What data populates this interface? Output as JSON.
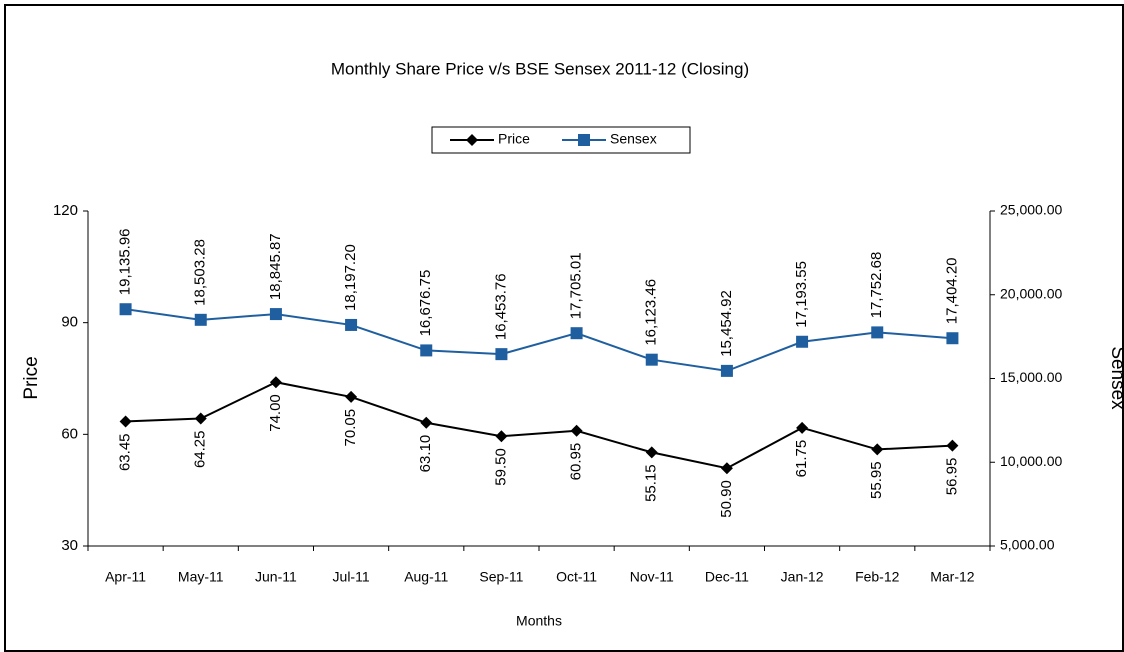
{
  "chart_data": {
    "type": "line",
    "title": "Monthly Share Price v/s BSE Sensex 2011-12 (Closing)",
    "x_label": "Months",
    "y_label": "Price",
    "y2_label": "Sensex",
    "categories": [
      "Apr-11",
      "May-11",
      "Jun-11",
      "Jul-11",
      "Aug-11",
      "Sep-11",
      "Oct-11",
      "Nov-11",
      "Dec-11",
      "Jan-12",
      "Feb-12",
      "Mar-12"
    ],
    "series": [
      {
        "name": "Price",
        "color": "#000000",
        "marker": "diamond",
        "values": [
          63.45,
          64.25,
          74.0,
          70.05,
          63.1,
          59.5,
          60.95,
          55.15,
          50.9,
          61.75,
          55.95,
          56.95
        ],
        "value_labels": [
          "63.45",
          "64.25",
          "74.00",
          "70.05",
          "63.10",
          "59.50",
          "60.95",
          "55.15",
          "50.90",
          "61.75",
          "55.95",
          "56.95"
        ]
      },
      {
        "name": "Sensex",
        "color": "#1f5fa0",
        "marker": "square",
        "axis": "y2",
        "values": [
          19135.96,
          18503.28,
          18845.87,
          18197.2,
          16676.75,
          16453.76,
          17705.01,
          16123.46,
          15454.92,
          17193.55,
          17752.68,
          17404.2
        ],
        "value_labels": [
          "19,135.96",
          "18,503.28",
          "18,845.87",
          "18,197.20",
          "16,676.75",
          "16,453.76",
          "17,705.01",
          "16,123.46",
          "15,454.92",
          "17,193.55",
          "17,752.68",
          "17,404.20"
        ]
      }
    ],
    "ylim": [
      30,
      120
    ],
    "yticks": [
      30,
      60,
      90,
      120
    ],
    "y2lim": [
      5000,
      25000
    ],
    "y2ticks": [
      {
        "value": 5000,
        "label": "5,000.00"
      },
      {
        "value": 10000,
        "label": "10,000.00"
      },
      {
        "value": 15000,
        "label": "15,000.00"
      },
      {
        "value": 20000,
        "label": "20,000.00"
      },
      {
        "value": 25000,
        "label": "25,000.00"
      }
    ],
    "legend": "top"
  }
}
